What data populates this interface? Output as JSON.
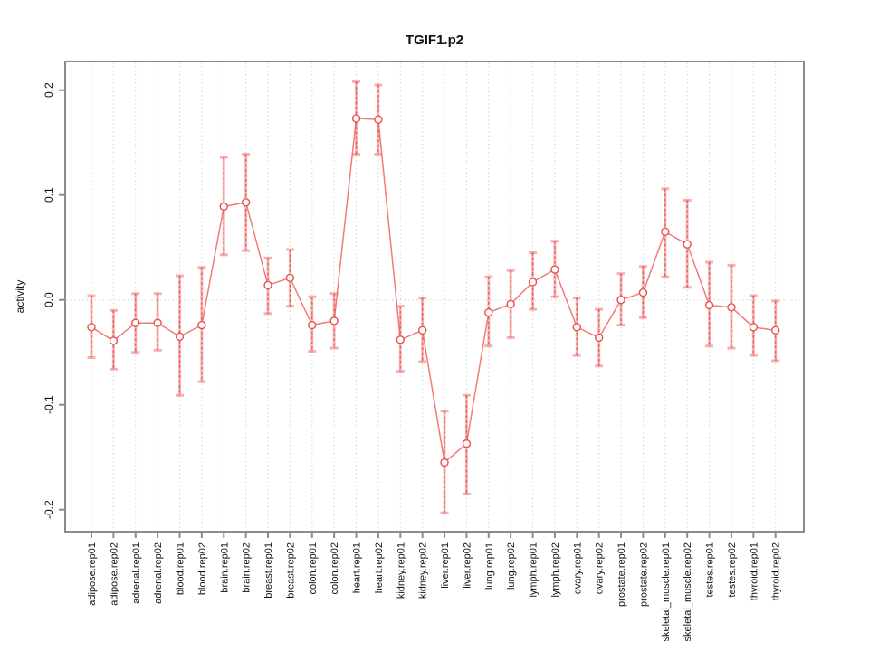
{
  "chart_data": {
    "type": "line",
    "title": "TGIF1.p2",
    "xlabel": "",
    "ylabel": "activity",
    "ylim": [
      -0.221,
      0.228
    ],
    "yticks": [
      0.2,
      0.1,
      0.0,
      -0.1,
      -0.2
    ],
    "ytick_labels": [
      "0.2",
      "0.1",
      "0.0",
      "-0.1",
      "-0.2"
    ],
    "grid": "dotted vertical gridline at every category; dotted horizontal line at y=0; gray box frame",
    "legend": "none",
    "marker": "open-circle",
    "colors": {
      "series_line": "#f26360",
      "marker_stroke": "#e8504d",
      "errorbar_solid": "#f3706e",
      "errorbar_dashed": "#e04b4b",
      "frame": "#8c8c8c",
      "gridline": "#d2d2d2",
      "tick_text": "#111111"
    },
    "categories": [
      "adipose.rep01",
      "adipose.rep02",
      "adrenal.rep01",
      "adrenal.rep02",
      "blood.rep01",
      "blood.rep02",
      "brain.rep01",
      "brain.rep02",
      "breast.rep01",
      "breast.rep02",
      "colon.rep01",
      "colon.rep02",
      "heart.rep01",
      "heart.rep02",
      "kidney.rep01",
      "kidney.rep02",
      "liver.rep01",
      "liver.rep02",
      "lung.rep01",
      "lung.rep02",
      "lymph.rep01",
      "lymph.rep02",
      "ovary.rep01",
      "ovary.rep02",
      "prostate.rep01",
      "prostate.rep02",
      "skeletal_muscle.rep01",
      "skeletal_muscle.rep02",
      "testes.rep01",
      "testes.rep02",
      "thyroid.rep01",
      "thyroid.rep02"
    ],
    "series": [
      {
        "name": "activity",
        "values": [
          -0.026,
          -0.039,
          -0.022,
          -0.022,
          -0.035,
          -0.024,
          0.089,
          0.093,
          0.014,
          0.021,
          -0.024,
          -0.02,
          0.173,
          0.172,
          -0.038,
          -0.029,
          -0.155,
          -0.137,
          -0.012,
          -0.004,
          0.017,
          0.029,
          -0.026,
          -0.036,
          0.0,
          0.007,
          0.065,
          0.053,
          -0.005,
          -0.007,
          -0.026,
          -0.029
        ],
        "error_low": [
          -0.055,
          -0.066,
          -0.05,
          -0.048,
          -0.091,
          -0.078,
          0.043,
          0.047,
          -0.013,
          -0.006,
          -0.049,
          -0.046,
          0.139,
          0.139,
          -0.068,
          -0.059,
          -0.203,
          -0.185,
          -0.044,
          -0.036,
          -0.009,
          0.003,
          -0.053,
          -0.063,
          -0.024,
          -0.017,
          0.022,
          0.012,
          -0.044,
          -0.046,
          -0.053,
          -0.058
        ],
        "error_high": [
          0.004,
          -0.01,
          0.006,
          0.006,
          0.023,
          0.031,
          0.136,
          0.139,
          0.04,
          0.048,
          0.003,
          0.006,
          0.208,
          0.205,
          -0.006,
          0.002,
          -0.106,
          -0.091,
          0.022,
          0.028,
          0.045,
          0.056,
          0.002,
          -0.009,
          0.025,
          0.032,
          0.106,
          0.095,
          0.036,
          0.033,
          0.004,
          -0.001
        ]
      }
    ]
  }
}
